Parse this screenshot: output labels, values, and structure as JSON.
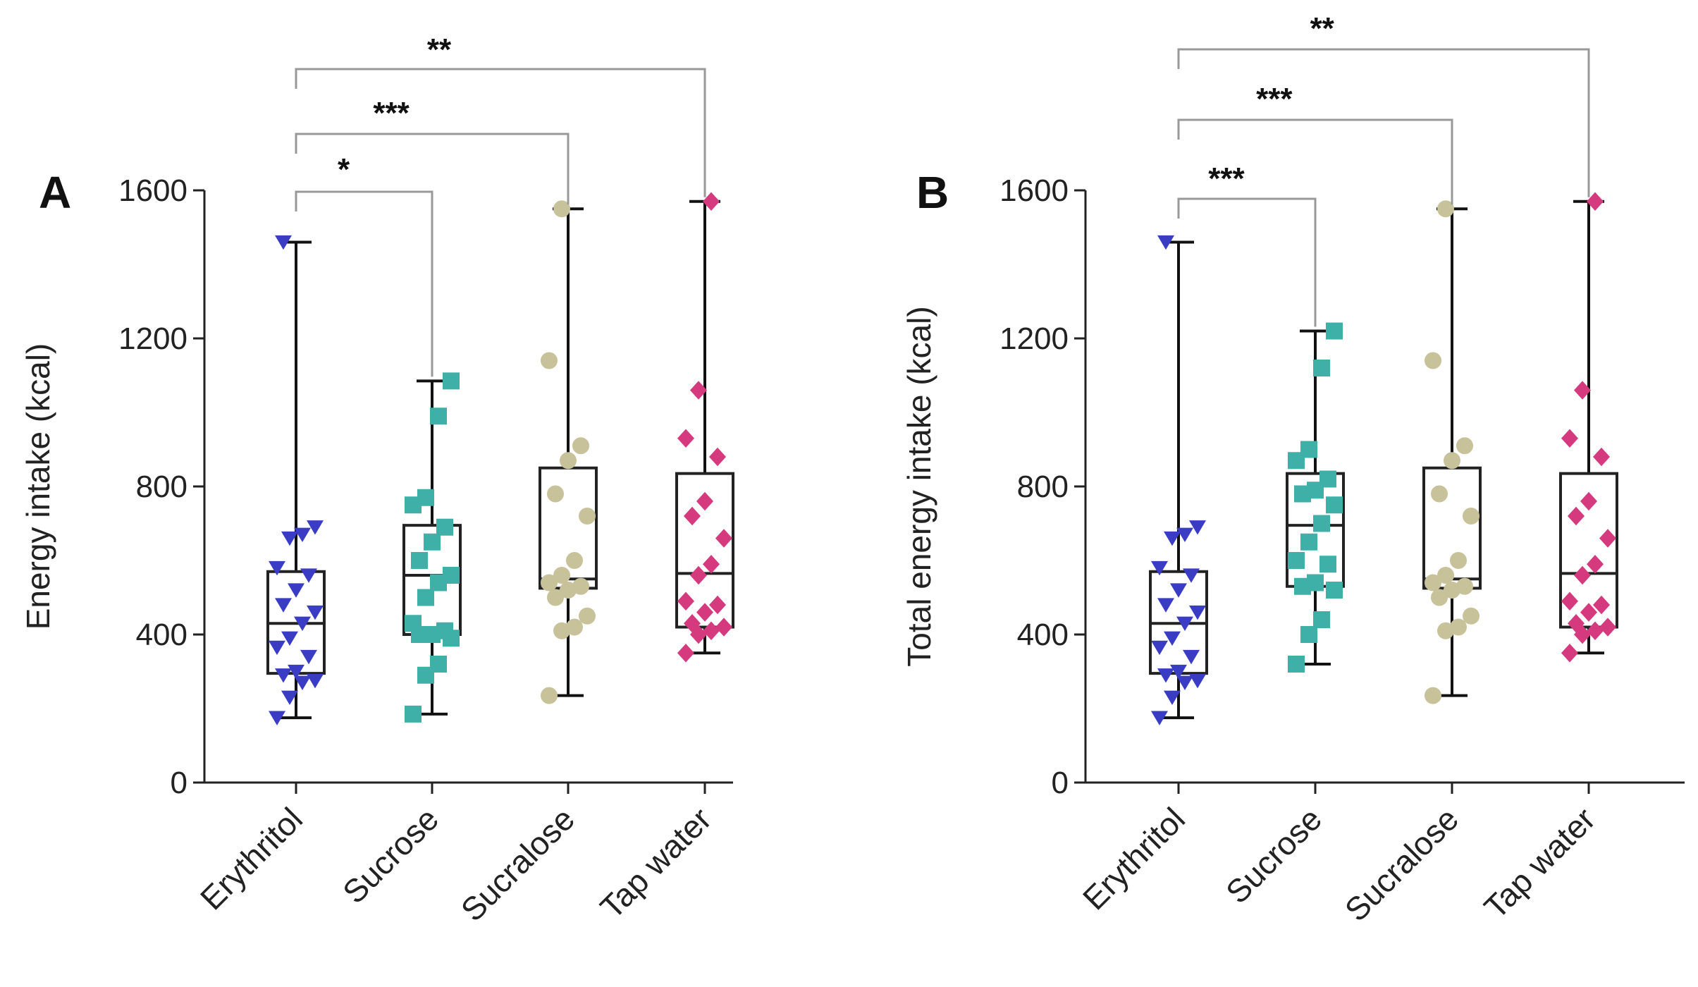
{
  "chart_data": [
    {
      "panel": "A",
      "type": "box",
      "ylabel": "Energy intake (kcal)",
      "ylim": [
        0,
        1600
      ],
      "yticks": [
        0,
        400,
        800,
        1200,
        1600
      ],
      "categories": [
        "Erythritol",
        "Sucrose",
        "Sucralose",
        "Tap water"
      ],
      "boxes": [
        {
          "name": "Erythritol",
          "min": 175,
          "q1": 295,
          "median": 430,
          "q3": 570,
          "max": 1460
        },
        {
          "name": "Sucrose",
          "min": 185,
          "q1": 400,
          "median": 560,
          "q3": 695,
          "max": 1085
        },
        {
          "name": "Sucralose",
          "min": 235,
          "q1": 525,
          "median": 550,
          "q3": 850,
          "max": 1550
        },
        {
          "name": "Tap water",
          "min": 350,
          "q1": 420,
          "median": 565,
          "q3": 835,
          "max": 1570
        }
      ],
      "points": [
        [
          175,
          230,
          270,
          275,
          290,
          300,
          340,
          365,
          390,
          430,
          460,
          480,
          520,
          560,
          580,
          660,
          670,
          690,
          1460
        ],
        [
          185,
          290,
          320,
          390,
          400,
          400,
          410,
          430,
          500,
          540,
          560,
          600,
          650,
          690,
          750,
          770,
          990,
          1085
        ],
        [
          235,
          410,
          420,
          450,
          500,
          520,
          530,
          540,
          560,
          600,
          720,
          780,
          870,
          910,
          1140,
          1550
        ],
        [
          350,
          400,
          410,
          420,
          430,
          460,
          480,
          490,
          560,
          590,
          660,
          720,
          760,
          880,
          930,
          1060,
          1570
        ]
      ],
      "significance": [
        {
          "from": "Erythritol",
          "to": "Sucrose",
          "label": "*"
        },
        {
          "from": "Erythritol",
          "to": "Sucralose",
          "label": "***"
        },
        {
          "from": "Erythritol",
          "to": "Tap water",
          "label": "**"
        }
      ]
    },
    {
      "panel": "B",
      "type": "box",
      "ylabel": "Total energy intake (kcal)",
      "ylim": [
        0,
        1600
      ],
      "yticks": [
        0,
        400,
        800,
        1200,
        1600
      ],
      "categories": [
        "Erythritol",
        "Sucrose",
        "Sucralose",
        "Tap water"
      ],
      "boxes": [
        {
          "name": "Erythritol",
          "min": 175,
          "q1": 295,
          "median": 430,
          "q3": 570,
          "max": 1460
        },
        {
          "name": "Sucrose",
          "min": 320,
          "q1": 530,
          "median": 695,
          "q3": 835,
          "max": 1220
        },
        {
          "name": "Sucralose",
          "min": 235,
          "q1": 525,
          "median": 550,
          "q3": 850,
          "max": 1550
        },
        {
          "name": "Tap water",
          "min": 350,
          "q1": 420,
          "median": 565,
          "q3": 835,
          "max": 1570
        }
      ],
      "points": [
        [
          175,
          230,
          270,
          275,
          290,
          300,
          340,
          365,
          390,
          430,
          460,
          480,
          520,
          560,
          580,
          660,
          670,
          690,
          1460
        ],
        [
          320,
          400,
          440,
          520,
          530,
          540,
          590,
          600,
          650,
          700,
          750,
          780,
          790,
          820,
          870,
          900,
          1120,
          1220
        ],
        [
          235,
          410,
          420,
          450,
          500,
          520,
          530,
          540,
          560,
          600,
          720,
          780,
          870,
          910,
          1140,
          1550
        ],
        [
          350,
          400,
          410,
          420,
          430,
          460,
          480,
          490,
          560,
          590,
          660,
          720,
          760,
          880,
          930,
          1060,
          1570
        ]
      ],
      "significance": [
        {
          "from": "Erythritol",
          "to": "Sucrose",
          "label": "***"
        },
        {
          "from": "Erythritol",
          "to": "Sucralose",
          "label": "***"
        },
        {
          "from": "Erythritol",
          "to": "Tap water",
          "label": "**"
        }
      ]
    }
  ],
  "colors": {
    "Erythritol": "#3a3dc4",
    "Sucrose": "#3fb0a8",
    "Sucralose": "#c8c29a",
    "Tap water": "#d63a7e"
  },
  "markers": {
    "Erythritol": "triangle-down",
    "Sucrose": "square",
    "Sucralose": "circle",
    "Tap water": "diamond"
  }
}
